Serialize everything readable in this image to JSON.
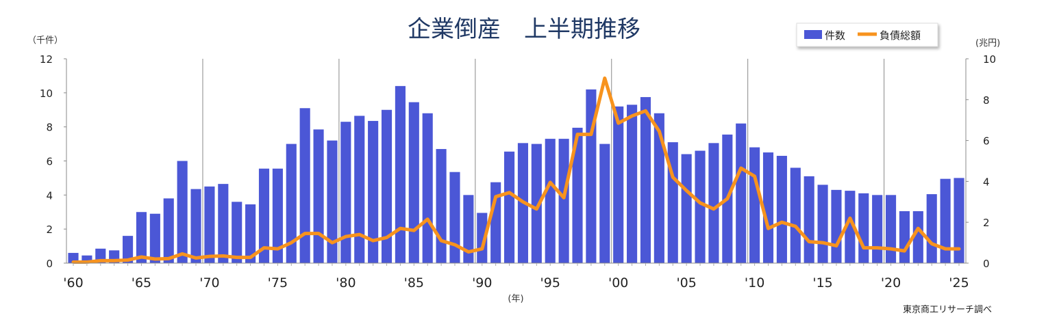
{
  "chart_data": {
    "type": "bar+line",
    "title": "企業倒産　上半期推移",
    "xlabel": "(年)",
    "ylabel_left": "（千件）",
    "ylabel_right": "(兆円)",
    "ylim_left": [
      0,
      12
    ],
    "ylim_right": [
      0,
      10
    ],
    "yticks_left": [
      "0",
      "2",
      "4",
      "6",
      "8",
      "10",
      "12"
    ],
    "yticks_right": [
      "0",
      "2",
      "4",
      "6",
      "8",
      "10"
    ],
    "xtick_labels": [
      "'60",
      "'65",
      "'70",
      "'75",
      "'80",
      "'85",
      "'90",
      "'95",
      "'00",
      "'05",
      "'10",
      "'15",
      "'20",
      "'25"
    ],
    "legend_position": "top-right",
    "grid": "vertical lines every 10 years",
    "source": "東京商工リサーチ調べ",
    "colors": {
      "bar": "#4b57d6",
      "line": "#f7931e",
      "title": "#1f3864"
    },
    "x": [
      1960,
      1961,
      1962,
      1963,
      1964,
      1965,
      1966,
      1967,
      1968,
      1969,
      1970,
      1971,
      1972,
      1973,
      1974,
      1975,
      1976,
      1977,
      1978,
      1979,
      1980,
      1981,
      1982,
      1983,
      1984,
      1985,
      1986,
      1987,
      1988,
      1989,
      1990,
      1991,
      1992,
      1993,
      1994,
      1995,
      1996,
      1997,
      1998,
      1999,
      2000,
      2001,
      2002,
      2003,
      2004,
      2005,
      2006,
      2007,
      2008,
      2009,
      2010,
      2011,
      2012,
      2013,
      2014,
      2015,
      2016,
      2017,
      2018,
      2019,
      2020,
      2021,
      2022,
      2023,
      2024,
      2025
    ],
    "series": [
      {
        "name": "件数",
        "type": "bar",
        "axis": "left",
        "values": [
          0.6,
          0.45,
          0.85,
          0.75,
          1.6,
          3.0,
          2.9,
          3.8,
          6.0,
          4.35,
          4.5,
          4.65,
          3.6,
          3.45,
          5.55,
          5.55,
          7.0,
          9.1,
          7.85,
          7.2,
          8.3,
          8.65,
          8.35,
          9.0,
          10.4,
          9.45,
          8.8,
          6.7,
          5.35,
          4.0,
          2.95,
          4.75,
          6.55,
          7.05,
          7.0,
          7.3,
          7.3,
          7.95,
          10.2,
          7.0,
          9.2,
          9.3,
          9.75,
          8.8,
          7.1,
          6.4,
          6.6,
          7.05,
          7.55,
          8.2,
          6.8,
          6.5,
          6.3,
          5.6,
          5.1,
          4.6,
          4.3,
          4.25,
          4.1,
          4.0,
          4.0,
          3.05,
          3.05,
          4.05,
          4.95,
          5.0
        ]
      },
      {
        "name": "負債総額",
        "type": "line",
        "axis": "right",
        "values": [
          0.05,
          0.05,
          0.12,
          0.12,
          0.15,
          0.3,
          0.2,
          0.22,
          0.45,
          0.25,
          0.33,
          0.35,
          0.28,
          0.28,
          0.75,
          0.7,
          1.0,
          1.45,
          1.45,
          1.0,
          1.3,
          1.4,
          1.1,
          1.25,
          1.7,
          1.6,
          2.15,
          1.1,
          0.9,
          0.55,
          0.7,
          3.25,
          3.45,
          3.0,
          2.65,
          3.95,
          3.2,
          6.3,
          6.3,
          9.05,
          6.85,
          7.2,
          7.45,
          6.45,
          4.2,
          3.55,
          2.95,
          2.65,
          3.15,
          4.65,
          4.25,
          1.7,
          2.0,
          1.8,
          1.05,
          1.0,
          0.85,
          2.2,
          0.75,
          0.75,
          0.7,
          0.6,
          1.7,
          0.95,
          0.7,
          0.7
        ]
      }
    ]
  }
}
